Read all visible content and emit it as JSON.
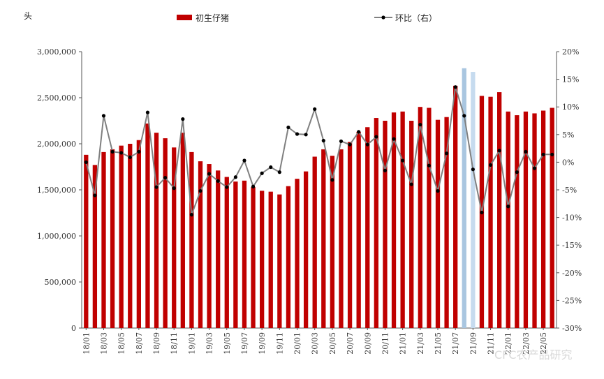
{
  "chart_data": {
    "type": "bar",
    "y_unit_label": "头",
    "x": [
      "18/01",
      "18/02",
      "18/03",
      "18/04",
      "18/05",
      "18/06",
      "18/07",
      "18/08",
      "18/09",
      "18/10",
      "18/11",
      "18/12",
      "19/01",
      "19/02",
      "19/03",
      "19/04",
      "19/05",
      "19/06",
      "19/07",
      "19/08",
      "19/09",
      "19/10",
      "19/11",
      "19/12",
      "20/01",
      "20/02",
      "20/03",
      "20/04",
      "20/05",
      "20/06",
      "20/07",
      "20/08",
      "20/09",
      "20/10",
      "20/11",
      "20/12",
      "21/01",
      "21/02",
      "21/03",
      "21/04",
      "21/05",
      "21/06",
      "21/07",
      "21/08",
      "21/09",
      "21/10",
      "21/11",
      "21/12",
      "22/01",
      "22/02",
      "22/03",
      "22/04",
      "22/05",
      "22/06"
    ],
    "x_tick_labels": [
      "18/01",
      "18/03",
      "18/05",
      "18/07",
      "18/09",
      "18/11",
      "19/01",
      "19/03",
      "19/05",
      "19/07",
      "19/09",
      "19/11",
      "20/01",
      "20/03",
      "20/05",
      "20/07",
      "20/09",
      "20/11",
      "21/01",
      "21/03",
      "21/05",
      "21/07",
      "21/09",
      "21/11",
      "22/01",
      "22/03",
      "22/05"
    ],
    "series": [
      {
        "name": "初生仔猪",
        "axis": "left",
        "color": "#c00000",
        "values": [
          1880000,
          1770000,
          1910000,
          1940000,
          1980000,
          2000000,
          2040000,
          2220000,
          2120000,
          2060000,
          1960000,
          2120000,
          1910000,
          1810000,
          1780000,
          1710000,
          1640000,
          1590000,
          1600000,
          1530000,
          1490000,
          1480000,
          1450000,
          1540000,
          1620000,
          1700000,
          1860000,
          1940000,
          1870000,
          1940000,
          2020000,
          2130000,
          2180000,
          2280000,
          2250000,
          2340000,
          2350000,
          2250000,
          2400000,
          2390000,
          2260000,
          2290000,
          2630000,
          2820000,
          2780000,
          2520000,
          2510000,
          2560000,
          2350000,
          2310000,
          2350000,
          2330000,
          2360000,
          2390000
        ],
        "highlight_colors": {
          "43": "#a9c6e0",
          "44": "#c6dbef"
        }
      },
      {
        "name": "环比（右）",
        "axis": "right",
        "color": "#808080",
        "marker_color": "#000000",
        "values": [
          0.0,
          -6.0,
          8.4,
          1.9,
          1.7,
          0.9,
          1.9,
          9.0,
          -4.5,
          -2.8,
          -4.7,
          7.8,
          -9.5,
          -5.2,
          -2.1,
          -3.4,
          -4.5,
          -2.7,
          0.3,
          -4.4,
          -2.0,
          -0.9,
          -1.8,
          6.3,
          5.1,
          5.0,
          9.6,
          3.9,
          -3.2,
          3.8,
          3.2,
          5.5,
          3.2,
          4.6,
          -1.5,
          4.2,
          0.3,
          -4.0,
          6.8,
          -0.6,
          -5.2,
          1.6,
          13.6,
          8.4,
          -1.3,
          -9.1,
          -0.5,
          2.1,
          -8.0,
          -1.8,
          1.9,
          -1.1,
          1.4,
          1.4
        ]
      }
    ],
    "y_left": {
      "min": 0,
      "max": 3000000,
      "ticks": [
        "0",
        "500,000",
        "1,000,000",
        "1,500,000",
        "2,000,000",
        "2,500,000",
        "3,000,000"
      ]
    },
    "y_right": {
      "min": -30,
      "max": 20,
      "ticks": [
        "-30%",
        "-25%",
        "-20%",
        "-15%",
        "-10%",
        "-5%",
        "0%",
        "5%",
        "10%",
        "15%",
        "20%"
      ]
    },
    "legend_position": "top",
    "grid": false,
    "watermark": "CFC农产品研究"
  }
}
